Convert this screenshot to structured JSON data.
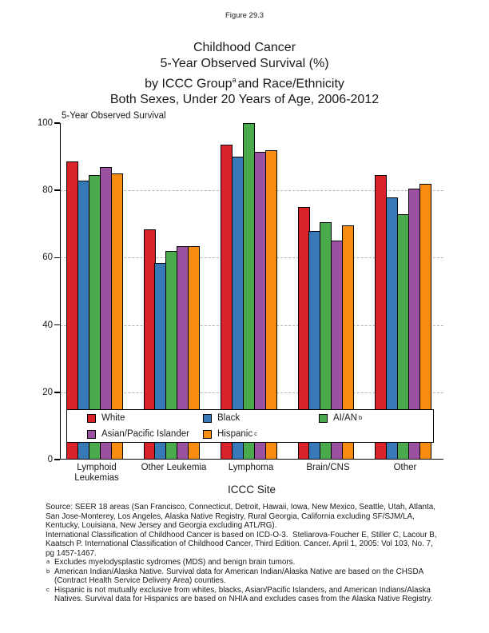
{
  "page": {
    "figure_label": "Figure 29.3"
  },
  "title": {
    "line1": "Childhood Cancer",
    "line2": "5-Year Observed Survival (%)",
    "line3_pre": "by ICCC Group",
    "line3_sup": "a",
    "line3_post": "and Race/Ethnicity",
    "line4": "Both Sexes, Under 20 Years of Age, 2006-2012"
  },
  "chart_data": {
    "type": "bar",
    "axis_title": "5-Year Observed Survival",
    "xlabel": "ICCC Site",
    "ylim": [
      0,
      100
    ],
    "yticks": [
      0,
      20,
      40,
      60,
      80,
      100
    ],
    "gridlines_at": [
      20,
      40,
      60,
      80
    ],
    "grid_style": "dashed",
    "legend_position": "inside-bottom",
    "categories": [
      [
        "Lymphoid",
        "Leukemias"
      ],
      [
        "Other Leukemia"
      ],
      [
        "Lymphoma"
      ],
      [
        "Brain/CNS"
      ],
      [
        "Other"
      ]
    ],
    "series": [
      {
        "name": "White",
        "sup": "",
        "color": "#d92328",
        "values": [
          88.5,
          68.5,
          93.5,
          75,
          84.5
        ]
      },
      {
        "name": "Black",
        "sup": "",
        "color": "#3779b7",
        "values": [
          83,
          58.5,
          90,
          68,
          78
        ]
      },
      {
        "name": "AI/AN",
        "sup": "b",
        "color": "#4baa4e",
        "values": [
          84.5,
          62,
          100,
          70.5,
          73
        ]
      },
      {
        "name": "Asian/Pacific Islander",
        "sup": "",
        "color": "#9b50a2",
        "values": [
          87,
          63.5,
          91.5,
          65,
          80.5
        ]
      },
      {
        "name": "Hispanic",
        "sup": "c",
        "color": "#f88b12",
        "values": [
          85,
          63.5,
          92,
          69.5,
          82
        ]
      }
    ]
  },
  "footnotes": {
    "source_lines": [
      "Source: SEER 18 areas (San Francisco, Connecticut, Detroit, Hawaii, Iowa, New Mexico, Seattle, Utah, Atlanta,",
      "San Jose-Monterey, Los Angeles, Alaska Native Registry, Rural Georgia, California excluding SF/SJM/LA,",
      "Kentucky, Louisiana, New Jersey and Georgia excluding ATL/RG).",
      "International Classification of Childhood Cancer is based on ICD-O-3.  Steliarova-Foucher E, Stiller C, Lacour B,",
      "Kaatsch P. International Classification of Childhood Cancer, Third Edition. Cancer. April 1, 2005: Vol 103, No. 7,",
      "pg 1457-1467."
    ],
    "items": [
      {
        "marker": "a",
        "lines": [
          "Excludes myelodysplastic sydromes (MDS) and benign brain tumors."
        ]
      },
      {
        "marker": "b",
        "lines": [
          "American Indian/Alaska Native. Survival data for American Indian/Alaska Native are based on the CHSDA",
          "(Contract Health Service Delivery Area) counties."
        ]
      },
      {
        "marker": "c",
        "lines": [
          "Hispanic is not mutually exclusive from whites, blacks, Asian/Pacific Islanders, and American Indians/Alaska",
          "Natives. Survival data for Hispanics are based on NHIA and excludes cases from the Alaska Native Registry."
        ]
      }
    ]
  }
}
